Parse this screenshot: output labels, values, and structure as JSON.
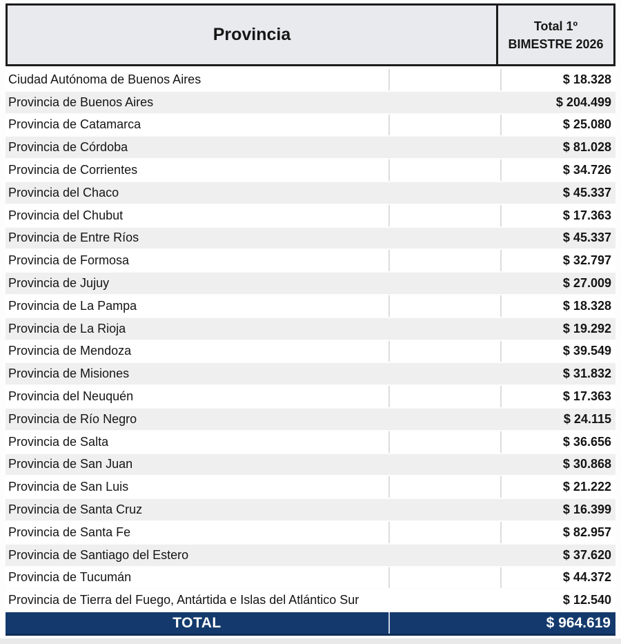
{
  "header": {
    "provincia_label": "Provincia",
    "total_label_line1": "Total 1º",
    "total_label_line2": "BIMESTRE 2026"
  },
  "rows": [
    {
      "name": "Ciudad Autónoma de Buenos Aires",
      "value": "$ 18.328"
    },
    {
      "name": "Provincia de Buenos Aires",
      "value": "$ 204.499"
    },
    {
      "name": "Provincia de Catamarca",
      "value": "$ 25.080"
    },
    {
      "name": "Provincia de Córdoba",
      "value": "$ 81.028"
    },
    {
      "name": "Provincia de Corrientes",
      "value": "$ 34.726"
    },
    {
      "name": "Provincia del Chaco",
      "value": "$ 45.337"
    },
    {
      "name": "Provincia del Chubut",
      "value": "$ 17.363"
    },
    {
      "name": "Provincia de Entre Ríos",
      "value": "$ 45.337"
    },
    {
      "name": "Provincia de Formosa",
      "value": "$ 32.797"
    },
    {
      "name": "Provincia de Jujuy",
      "value": "$ 27.009"
    },
    {
      "name": "Provincia de La Pampa",
      "value": "$ 18.328"
    },
    {
      "name": "Provincia de La Rioja",
      "value": "$ 19.292"
    },
    {
      "name": "Provincia de Mendoza",
      "value": "$ 39.549"
    },
    {
      "name": "Provincia de Misiones",
      "value": "$ 31.832"
    },
    {
      "name": "Provincia del Neuquén",
      "value": "$ 17.363"
    },
    {
      "name": "Provincia de Río Negro",
      "value": "$ 24.115"
    },
    {
      "name": "Provincia de Salta",
      "value": "$ 36.656"
    },
    {
      "name": "Provincia de San Juan",
      "value": "$ 30.868"
    },
    {
      "name": "Provincia de San Luis",
      "value": "$ 21.222"
    },
    {
      "name": "Provincia de Santa Cruz",
      "value": "$ 16.399"
    },
    {
      "name": "Provincia de Santa Fe",
      "value": "$ 82.957"
    },
    {
      "name": "Provincia de Santiago del Estero",
      "value": "$ 37.620"
    },
    {
      "name": "Provincia de Tucumán",
      "value": "$ 44.372"
    },
    {
      "name": "Provincia de Tierra del Fuego, Antártida e Islas del Atlántico Sur",
      "value": "$ 12.540"
    }
  ],
  "total_row": {
    "label": "TOTAL",
    "value": "$ 964.619"
  },
  "colors": {
    "navy": "#143A6D",
    "stripe_gray": "#EFEFEF",
    "header_bg": "#E8EAED",
    "header_border": "#1C1C1C",
    "divider_gray": "#DCDCDC"
  },
  "chart_data": {
    "type": "table",
    "title": "Total 1º BIMESTRE 2026 por Provincia",
    "columns": [
      "Provincia",
      "Total 1º BIMESTRE 2026"
    ],
    "categories": [
      "Ciudad Autónoma de Buenos Aires",
      "Provincia de Buenos Aires",
      "Provincia de Catamarca",
      "Provincia de Córdoba",
      "Provincia de Corrientes",
      "Provincia del Chaco",
      "Provincia del Chubut",
      "Provincia de Entre Ríos",
      "Provincia de Formosa",
      "Provincia de Jujuy",
      "Provincia de La Pampa",
      "Provincia de La Rioja",
      "Provincia de Mendoza",
      "Provincia de Misiones",
      "Provincia del Neuquén",
      "Provincia de Río Negro",
      "Provincia de Salta",
      "Provincia de San Juan",
      "Provincia de San Luis",
      "Provincia de Santa Cruz",
      "Provincia de Santa Fe",
      "Provincia de Santiago del Estero",
      "Provincia de Tucumán",
      "Provincia de Tierra del Fuego, Antártida e Islas del Atlántico Sur"
    ],
    "values": [
      18328,
      204499,
      25080,
      81028,
      34726,
      45337,
      17363,
      45337,
      32797,
      27009,
      18328,
      19292,
      39549,
      31832,
      17363,
      24115,
      36656,
      30868,
      21222,
      16399,
      82957,
      37620,
      44372,
      12540
    ],
    "total": 964619,
    "currency_symbol": "$"
  }
}
